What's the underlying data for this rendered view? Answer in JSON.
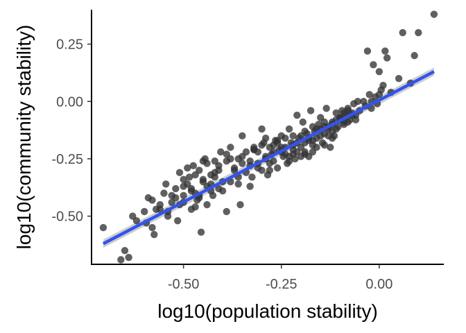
{
  "chart_data": {
    "type": "scatter",
    "xlabel": "log10(population stability)",
    "ylabel": "log10(community stability)",
    "xlim": [
      -0.735,
      0.165
    ],
    "ylim": [
      -0.71,
      0.4
    ],
    "xticks": [
      -0.5,
      -0.25,
      0.0
    ],
    "xtick_labels": [
      "-0.50",
      "-0.25",
      "0.00"
    ],
    "yticks": [
      -0.5,
      -0.25,
      0.0,
      0.25
    ],
    "ytick_labels": [
      "-0.50",
      "-0.25",
      "0.00",
      "0.25"
    ],
    "grid": false,
    "legend": "none",
    "colors": {
      "points": "#333333",
      "fit_line": "#3353f0",
      "confidence_band": "#c8c8c8",
      "axis": "#000000"
    },
    "fit": {
      "x": [
        -0.705,
        0.14
      ],
      "y": [
        -0.62,
        0.13
      ],
      "band_halfwidth": 0.018
    },
    "points": {
      "x": [
        -0.705,
        -0.66,
        -0.65,
        -0.64,
        -0.63,
        -0.62,
        -0.6,
        -0.595,
        -0.59,
        -0.58,
        -0.575,
        -0.57,
        -0.56,
        -0.55,
        -0.545,
        -0.54,
        -0.53,
        -0.52,
        -0.515,
        -0.51,
        -0.5,
        -0.5,
        -0.49,
        -0.485,
        -0.48,
        -0.475,
        -0.47,
        -0.465,
        -0.46,
        -0.455,
        -0.45,
        -0.445,
        -0.44,
        -0.43,
        -0.425,
        -0.42,
        -0.41,
        -0.405,
        -0.4,
        -0.39,
        -0.38,
        -0.37,
        -0.36,
        -0.355,
        -0.35,
        -0.34,
        -0.33,
        -0.325,
        -0.32,
        -0.31,
        -0.3,
        -0.295,
        -0.29,
        -0.285,
        -0.28,
        -0.275,
        -0.27,
        -0.265,
        -0.26,
        -0.255,
        -0.25,
        -0.245,
        -0.24,
        -0.235,
        -0.23,
        -0.225,
        -0.22,
        -0.215,
        -0.21,
        -0.205,
        -0.2,
        -0.195,
        -0.19,
        -0.185,
        -0.18,
        -0.175,
        -0.17,
        -0.165,
        -0.16,
        -0.155,
        -0.15,
        -0.145,
        -0.14,
        -0.135,
        -0.13,
        -0.125,
        -0.12,
        -0.115,
        -0.11,
        -0.105,
        -0.1,
        -0.095,
        -0.09,
        -0.085,
        -0.08,
        -0.075,
        -0.07,
        -0.065,
        -0.06,
        -0.055,
        -0.05,
        -0.04,
        -0.035,
        -0.03,
        -0.025,
        -0.02,
        -0.015,
        -0.01,
        -0.005,
        0.0,
        0.005,
        0.01,
        0.015,
        0.02,
        0.03,
        0.05,
        0.06,
        0.08,
        0.09,
        0.1,
        0.14,
        -0.49,
        -0.45,
        -0.43,
        -0.41,
        -0.38,
        -0.36,
        -0.35,
        -0.3,
        -0.28,
        -0.26,
        -0.25,
        -0.24,
        -0.22,
        -0.2,
        -0.19,
        -0.18,
        -0.17,
        -0.15,
        -0.14,
        -0.13,
        -0.12,
        -0.1,
        -0.09,
        -0.08,
        -0.06,
        -0.02,
        0.0,
        -0.5,
        -0.48,
        -0.46,
        -0.44,
        -0.42,
        -0.4,
        -0.39,
        -0.37,
        -0.34,
        -0.32,
        -0.31,
        -0.29,
        -0.27,
        -0.23,
        -0.21,
        -0.19,
        -0.16,
        -0.14,
        -0.11,
        -0.09,
        -0.07,
        -0.52,
        -0.47,
        -0.44,
        -0.33,
        -0.3,
        -0.27,
        -0.24,
        -0.22,
        -0.2,
        -0.17,
        -0.15,
        -0.12,
        -0.1,
        -0.08,
        -0.56,
        -0.53,
        -0.5,
        -0.47,
        -0.45,
        -0.43,
        -0.41,
        -0.39,
        -0.36,
        -0.33,
        -0.31,
        -0.29,
        -0.26,
        -0.23,
        -0.21,
        -0.18,
        -0.16,
        -0.13,
        -0.11,
        -0.58,
        -0.54,
        -0.51,
        -0.48,
        -0.46,
        -0.42,
        -0.38,
        -0.35,
        -0.32,
        -0.28,
        -0.25,
        -0.22,
        -0.19,
        -0.17,
        -0.14,
        -0.12
      ],
      "y": [
        -0.55,
        -0.69,
        -0.65,
        -0.68,
        -0.5,
        -0.52,
        -0.48,
        -0.53,
        -0.42,
        -0.55,
        -0.58,
        -0.47,
        -0.45,
        -0.4,
        -0.36,
        -0.5,
        -0.44,
        -0.38,
        -0.52,
        -0.31,
        -0.41,
        -0.34,
        -0.36,
        -0.33,
        -0.47,
        -0.28,
        -0.4,
        -0.43,
        -0.3,
        -0.57,
        -0.35,
        -0.25,
        -0.45,
        -0.32,
        -0.41,
        -0.26,
        -0.38,
        -0.22,
        -0.35,
        -0.48,
        -0.2,
        -0.3,
        -0.25,
        -0.45,
        -0.15,
        -0.22,
        -0.28,
        -0.33,
        -0.21,
        -0.27,
        -0.12,
        -0.18,
        -0.25,
        -0.32,
        -0.2,
        -0.23,
        -0.26,
        -0.17,
        -0.29,
        -0.21,
        -0.15,
        -0.24,
        -0.2,
        -0.27,
        -0.12,
        -0.18,
        -0.23,
        -0.25,
        -0.06,
        -0.16,
        -0.2,
        -0.09,
        -0.22,
        -0.14,
        -0.24,
        -0.04,
        -0.17,
        -0.13,
        -0.2,
        -0.1,
        -0.07,
        -0.18,
        -0.14,
        -0.03,
        -0.12,
        -0.2,
        -0.09,
        -0.15,
        -0.05,
        -0.11,
        -0.07,
        -0.04,
        -0.1,
        -0.06,
        -0.03,
        -0.08,
        -0.05,
        -0.01,
        -0.08,
        0.0,
        -0.04,
        0.0,
        -0.02,
        0.22,
        0.03,
        -0.03,
        0.16,
        0.02,
        -0.01,
        0.13,
        0.05,
        0.07,
        0.22,
        0.19,
        0.04,
        0.1,
        0.3,
        0.08,
        0.2,
        0.3,
        0.38,
        -0.29,
        -0.34,
        -0.36,
        -0.28,
        -0.25,
        -0.36,
        -0.24,
        -0.19,
        -0.27,
        -0.17,
        -0.22,
        -0.23,
        -0.19,
        -0.15,
        -0.13,
        -0.17,
        -0.22,
        -0.15,
        -0.09,
        -0.11,
        -0.13,
        -0.07,
        -0.09,
        -0.04,
        -0.06,
        0.0,
        0.03,
        -0.44,
        -0.38,
        -0.41,
        -0.27,
        -0.31,
        -0.39,
        -0.26,
        -0.29,
        -0.31,
        -0.21,
        -0.29,
        -0.24,
        -0.19,
        -0.26,
        -0.22,
        -0.18,
        -0.16,
        -0.11,
        -0.12,
        -0.05,
        -0.06,
        -0.42,
        -0.46,
        -0.37,
        -0.37,
        -0.3,
        -0.22,
        -0.16,
        -0.21,
        -0.24,
        -0.19,
        -0.12,
        -0.16,
        -0.08,
        -0.09,
        -0.47,
        -0.41,
        -0.37,
        -0.32,
        -0.26,
        -0.39,
        -0.3,
        -0.23,
        -0.33,
        -0.26,
        -0.22,
        -0.16,
        -0.18,
        -0.24,
        -0.18,
        -0.16,
        -0.12,
        -0.15,
        -0.08,
        -0.43,
        -0.48,
        -0.45,
        -0.39,
        -0.42,
        -0.33,
        -0.35,
        -0.27,
        -0.2,
        -0.3,
        -0.2,
        -0.15,
        -0.23,
        -0.11,
        -0.19,
        -0.1
      ]
    }
  }
}
